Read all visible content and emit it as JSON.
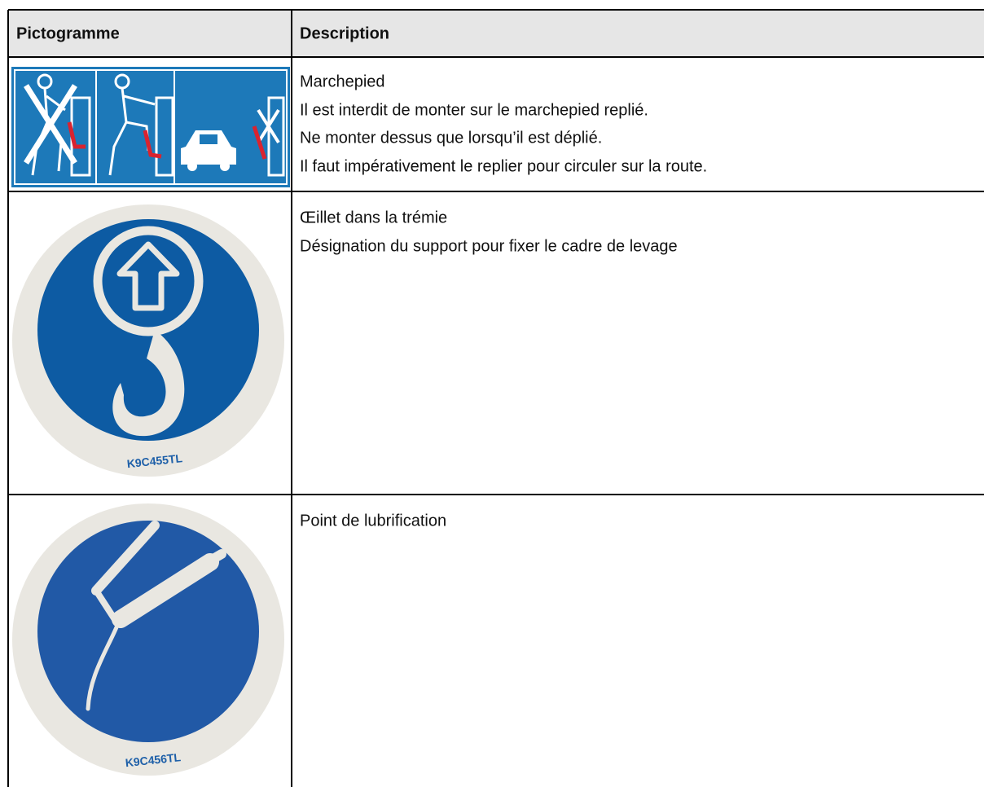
{
  "table": {
    "header": [
      "Pictogramme",
      "Description"
    ],
    "rows": [
      {
        "description": [
          "Marchepied",
          "Il est interdit de monter sur le marchepied replié.",
          "Ne monter dessus que lorsqu’il est déplié.",
          "Il faut impérativement le replier pour circuler sur la route."
        ]
      },
      {
        "code": "K9C455TL",
        "description": [
          "Œillet dans la trémie",
          "Désignation du support pour fixer le cadre de levage"
        ]
      },
      {
        "code": "K9C456TL",
        "description": [
          "Point de lubrification"
        ]
      }
    ]
  }
}
